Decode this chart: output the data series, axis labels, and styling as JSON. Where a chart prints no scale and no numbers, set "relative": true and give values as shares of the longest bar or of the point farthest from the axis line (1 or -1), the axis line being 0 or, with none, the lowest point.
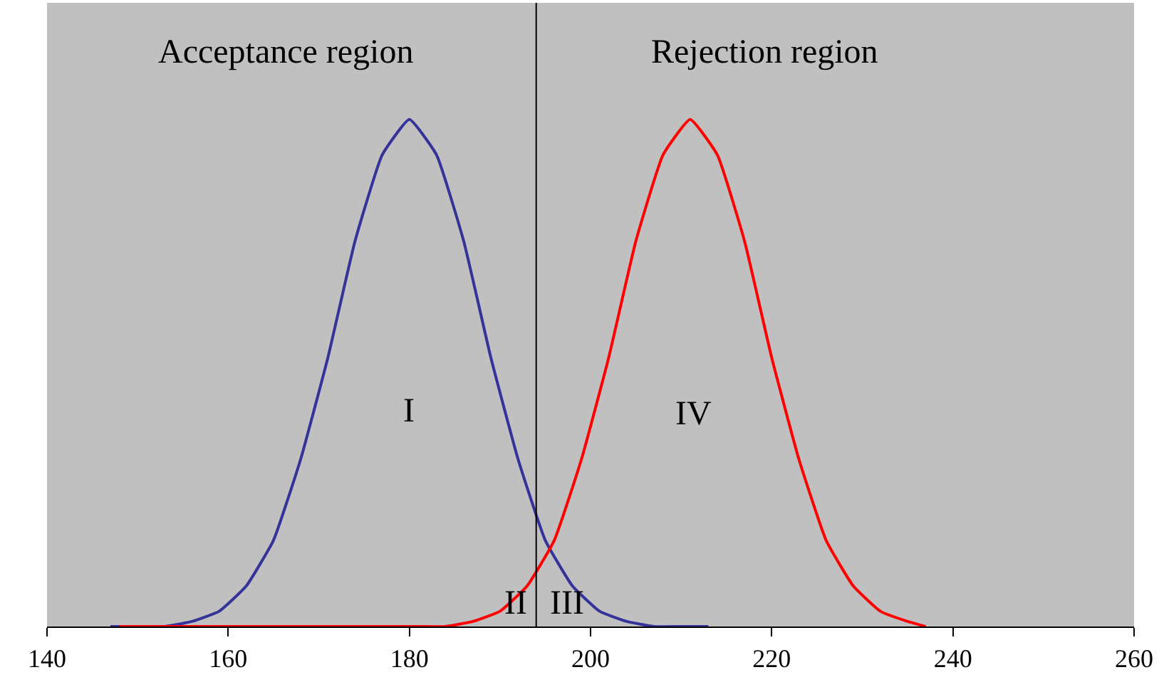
{
  "chart_data": {
    "type": "line",
    "relative": true,
    "xlim": [
      140,
      260
    ],
    "xticks": [
      140,
      160,
      180,
      200,
      220,
      240,
      260
    ],
    "series": [
      {
        "color": "#333399",
        "x": [
          147,
          150,
          153,
          156,
          159,
          162,
          165,
          168,
          171,
          174,
          177,
          180,
          183,
          186,
          189,
          192,
          195,
          198,
          201,
          204,
          207,
          210,
          213
        ],
        "values": [
          0,
          0,
          0,
          0.01,
          0.03,
          0.08,
          0.17,
          0.33,
          0.53,
          0.76,
          0.93,
          1,
          0.93,
          0.76,
          0.53,
          0.33,
          0.17,
          0.08,
          0.03,
          0.01,
          0,
          0,
          0
        ]
      },
      {
        "color": "#ff0000",
        "x": [
          148,
          157,
          166,
          175,
          178,
          181,
          184,
          187,
          190,
          193,
          196,
          199,
          202,
          205,
          208,
          211,
          214,
          217,
          220,
          223,
          226,
          229,
          232,
          235,
          237
        ],
        "values": [
          0,
          0,
          0,
          0,
          0,
          0,
          0,
          0.01,
          0.03,
          0.08,
          0.17,
          0.33,
          0.53,
          0.76,
          0.93,
          1,
          0.93,
          0.76,
          0.53,
          0.33,
          0.17,
          0.08,
          0.03,
          0.01,
          0
        ]
      }
    ],
    "ref_lines": [
      {
        "axis": "x",
        "value": 194,
        "color": "#000000"
      }
    ],
    "annotations": [
      "Acceptance region",
      "Rejection region",
      "I",
      "IV",
      "II",
      "III"
    ],
    "grid": false,
    "marker": "none",
    "line_style": "solid"
  }
}
